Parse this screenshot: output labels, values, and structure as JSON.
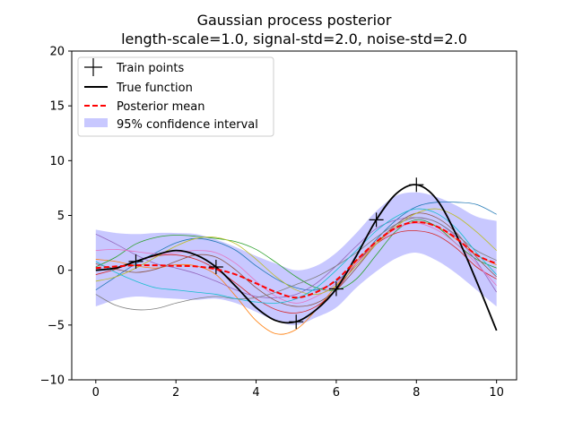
{
  "chart_data": {
    "type": "line",
    "title_line1": "Gaussian process posterior",
    "title_line2": "length-scale=1.0, signal-std=2.0, noise-std=2.0",
    "xlim": [
      -0.6,
      10.5
    ],
    "ylim": [
      -10,
      20
    ],
    "x_ticks": [
      0,
      2,
      4,
      6,
      8,
      10
    ],
    "y_ticks": [
      -10,
      -5,
      0,
      5,
      10,
      15,
      20
    ],
    "legend_position": "top-left",
    "legend": {
      "train": "Train points",
      "true": "True function",
      "mean": "Posterior mean",
      "ci": "95% confidence interval"
    },
    "colors": {
      "true": "#000000",
      "mean": "#ff0000",
      "ci": "#c8c8ff",
      "train": "#000000"
    },
    "train_points": [
      {
        "x": 1,
        "y": 0.8
      },
      {
        "x": 3,
        "y": 0.3
      },
      {
        "x": 5,
        "y": -4.7
      },
      {
        "x": 6,
        "y": -1.7
      },
      {
        "x": 7,
        "y": 4.6
      },
      {
        "x": 8,
        "y": 7.8
      }
    ],
    "true_function": {
      "x": [
        0,
        0.5,
        1,
        1.5,
        2,
        2.5,
        3,
        3.5,
        4,
        4.5,
        5,
        5.5,
        6,
        6.5,
        7,
        7.5,
        8,
        8.5,
        9,
        9.5,
        10
      ],
      "y": [
        0.0,
        0.2,
        0.8,
        1.4,
        1.8,
        1.4,
        0.3,
        -1.5,
        -3.4,
        -4.6,
        -4.7,
        -3.6,
        -1.7,
        1.3,
        4.6,
        7.0,
        7.8,
        6.5,
        3.2,
        -1.0,
        -5.5
      ]
    },
    "posterior_mean": {
      "x": [
        0,
        0.5,
        1,
        1.5,
        2,
        2.5,
        3,
        3.5,
        4,
        4.5,
        5,
        5.5,
        6,
        6.5,
        7,
        7.5,
        8,
        8.5,
        9,
        9.5,
        10
      ],
      "y": [
        0.2,
        0.35,
        0.45,
        0.45,
        0.4,
        0.35,
        0.1,
        -0.4,
        -1.2,
        -2.0,
        -2.5,
        -2.0,
        -0.9,
        0.9,
        2.6,
        3.9,
        4.4,
        4.0,
        2.9,
        1.4,
        0.6
      ]
    },
    "confidence_interval": {
      "x": [
        0,
        0.5,
        1,
        1.5,
        2,
        2.5,
        3,
        3.5,
        4,
        4.5,
        5,
        5.5,
        6,
        6.5,
        7,
        7.5,
        8,
        8.5,
        9,
        9.5,
        10
      ],
      "lower": [
        -3.3,
        -2.7,
        -2.4,
        -2.5,
        -2.6,
        -2.7,
        -2.6,
        -3.0,
        -3.8,
        -4.6,
        -5.0,
        -4.3,
        -3.4,
        -1.6,
        -0.1,
        1.1,
        1.6,
        0.9,
        -0.3,
        -1.8,
        -3.3
      ],
      "upper": [
        3.7,
        3.4,
        3.3,
        3.4,
        3.4,
        3.3,
        2.8,
        2.1,
        1.3,
        0.6,
        0.0,
        0.4,
        1.6,
        3.4,
        5.4,
        6.8,
        7.1,
        6.7,
        5.9,
        4.9,
        4.5
      ]
    },
    "samples": [
      {
        "color": "#1f77b4",
        "y": [
          -1.8,
          -0.6,
          0.6,
          1.6,
          2.5,
          2.9,
          2.6,
          1.8,
          0.4,
          -0.8,
          -1.6,
          -1.8,
          -1.0,
          0.6,
          2.8,
          4.6,
          5.8,
          6.2,
          6.2,
          6.0,
          5.1
        ]
      },
      {
        "color": "#ff7f0e",
        "y": [
          1.0,
          0.8,
          0.4,
          0.2,
          0.5,
          0.4,
          -0.4,
          -2.4,
          -4.6,
          -5.8,
          -5.4,
          -3.6,
          -1.4,
          0.8,
          2.6,
          3.8,
          4.4,
          4.0,
          2.8,
          1.4,
          0.5
        ]
      },
      {
        "color": "#2ca02c",
        "y": [
          0.3,
          1.2,
          2.4,
          3.0,
          3.2,
          3.1,
          2.9,
          2.6,
          1.9,
          0.7,
          -0.6,
          -1.6,
          -1.8,
          -0.8,
          1.4,
          3.6,
          4.6,
          4.0,
          2.4,
          1.0,
          0.2
        ]
      },
      {
        "color": "#d62728",
        "y": [
          -0.4,
          0.1,
          0.8,
          1.3,
          1.4,
          1.0,
          0.1,
          -1.2,
          -2.6,
          -3.6,
          -3.9,
          -3.3,
          -1.8,
          0.6,
          2.4,
          3.4,
          3.6,
          3.2,
          2.0,
          0.3,
          -0.8
        ]
      },
      {
        "color": "#9467bd",
        "y": [
          3.3,
          2.4,
          1.4,
          0.6,
          0.2,
          -0.3,
          -1.0,
          -1.8,
          -2.4,
          -2.5,
          -2.2,
          -1.2,
          0.4,
          2.2,
          3.8,
          4.6,
          4.8,
          4.4,
          3.0,
          0.8,
          -2.0
        ]
      },
      {
        "color": "#8c564b",
        "y": [
          0.6,
          0.1,
          -0.2,
          0.1,
          0.8,
          1.4,
          1.2,
          0.0,
          -1.6,
          -2.8,
          -3.3,
          -3.0,
          -1.8,
          0.2,
          2.4,
          4.2,
          5.2,
          4.8,
          3.4,
          1.2,
          -0.6
        ]
      },
      {
        "color": "#e377c2",
        "y": [
          1.8,
          1.9,
          1.7,
          1.5,
          1.6,
          1.8,
          1.6,
          0.6,
          -1.0,
          -2.4,
          -3.0,
          -2.4,
          -1.2,
          0.6,
          2.4,
          3.8,
          4.3,
          3.7,
          2.4,
          0.6,
          -1.4
        ]
      },
      {
        "color": "#7f7f7f",
        "y": [
          -2.2,
          -3.2,
          -3.6,
          -3.5,
          -3.0,
          -2.6,
          -2.4,
          -2.6,
          -2.5,
          -2.0,
          -1.3,
          -0.6,
          0.4,
          1.6,
          3.0,
          4.2,
          4.8,
          4.4,
          3.2,
          1.8,
          0.9
        ]
      },
      {
        "color": "#bcbd22",
        "y": [
          -1.0,
          -0.6,
          0.2,
          1.2,
          2.2,
          2.9,
          3.0,
          2.4,
          1.0,
          -0.6,
          -1.8,
          -2.2,
          -1.4,
          0.4,
          2.4,
          4.0,
          5.2,
          5.6,
          4.9,
          3.5,
          1.8
        ]
      },
      {
        "color": "#17becf",
        "y": [
          0.8,
          -0.2,
          -1.0,
          -1.6,
          -1.8,
          -2.0,
          -2.2,
          -2.6,
          -2.9,
          -3.0,
          -2.6,
          -1.6,
          0.0,
          1.8,
          3.6,
          4.9,
          5.6,
          5.2,
          3.8,
          1.6,
          -0.4
        ]
      }
    ]
  }
}
